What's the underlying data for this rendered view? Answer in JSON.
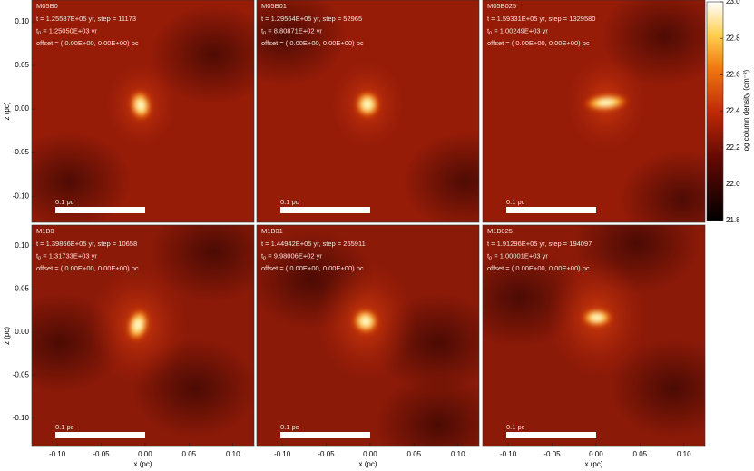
{
  "chart_data": [
    {
      "type": "heatmap",
      "title": "M05B0",
      "lines": [
        "t = 1.25587E+05 yr, step = 11173",
        [
          "t",
          "p",
          " = 1.25050E+03 yr"
        ],
        "offset = ( 0.00E+00, 0.00E+00) pc"
      ],
      "scale_bar": "0.1 pc",
      "ylabel": "z (pc)",
      "ylim": [
        -0.13,
        0.125
      ],
      "yticks": [
        {
          "value": -0.1,
          "label": "-0.10"
        },
        -0.05,
        {
          "value": 0,
          "label": "0.00"
        },
        0.05,
        {
          "value": 0.1,
          "label": "0.10"
        }
      ]
    },
    {
      "type": "heatmap",
      "title": "M05B01",
      "lines": [
        "t = 1.29564E+05 yr, step = 52965",
        [
          "t",
          "p",
          " = 8.80871E+02 yr"
        ],
        "offset = ( 0.00E+00, 0.00E+00) pc"
      ],
      "scale_bar": "0.1 pc"
    },
    {
      "type": "heatmap",
      "title": "M05B025",
      "lines": [
        "t = 1.59331E+05 yr, step = 1329580",
        [
          "t",
          "p",
          " = 1.00249E+03 yr"
        ],
        "offset = ( 0.00E+00, 0.00E+00) pc"
      ],
      "scale_bar": "0.1 pc"
    },
    {
      "type": "heatmap",
      "title": "M1B0",
      "lines": [
        "t = 1.39866E+05 yr, step = 10658",
        [
          "t",
          "p",
          " = 1.31733E+03 yr"
        ],
        "offset = ( 0.00E+00, 0.00E+00) pc"
      ],
      "scale_bar": "0.1 pc",
      "ylabel": "z (pc)",
      "ylim": [
        -0.133,
        0.124
      ],
      "yticks": [
        {
          "value": -0.1,
          "label": "-0.10"
        },
        -0.05,
        {
          "value": 0,
          "label": "0.00"
        },
        0.05,
        {
          "value": 0.1,
          "label": "0.10"
        }
      ],
      "xlabel": "x (pc)",
      "xlim": [
        -0.129,
        0.124
      ],
      "xticks": [
        {
          "value": -0.1,
          "label": "-0.10"
        },
        -0.05,
        {
          "value": 0,
          "label": "0.00"
        },
        0.05,
        {
          "value": 0.1,
          "label": "0.10"
        }
      ]
    },
    {
      "type": "heatmap",
      "title": "M1B01",
      "lines": [
        "t = 1.44942E+05 yr, step = 265911",
        [
          "t",
          "p",
          " = 9.98006E+02 yr"
        ],
        "offset = ( 0.00E+00, 0.00E+00) pc"
      ],
      "scale_bar": "0.1 pc",
      "xlabel": "x (pc)",
      "xlim": [
        -0.129,
        0.124
      ],
      "xticks": [
        {
          "value": -0.1,
          "label": "-0.10"
        },
        -0.05,
        {
          "value": 0,
          "label": "0.00"
        },
        0.05,
        {
          "value": 0.1,
          "label": "0.10"
        }
      ]
    },
    {
      "type": "heatmap",
      "title": "M1B025",
      "lines": [
        "t = 1.91296E+05 yr, step = 194097",
        [
          "t",
          "p",
          " = 1.00001E+03 yr"
        ],
        "offset = ( 0.00E+00, 0.00E+00) pc"
      ],
      "scale_bar": "0.1 pc",
      "xlabel": "x (pc)",
      "xlim": [
        -0.129,
        0.124
      ],
      "xticks": [
        {
          "value": -0.1,
          "label": "-0.10"
        },
        -0.05,
        {
          "value": 0,
          "label": "0.00"
        },
        0.05,
        {
          "value": 0.1,
          "label": "0.10"
        }
      ]
    },
    {
      "type": "colorbar",
      "label": "log column density (cm⁻²)",
      "ylim": [
        21.8,
        23.0
      ],
      "yticks": [
        21.8,
        {
          "value": 22.0,
          "label": "22.0"
        },
        22.2,
        22.4,
        22.6,
        22.8,
        {
          "value": 23.0,
          "label": "23.0"
        }
      ]
    }
  ]
}
